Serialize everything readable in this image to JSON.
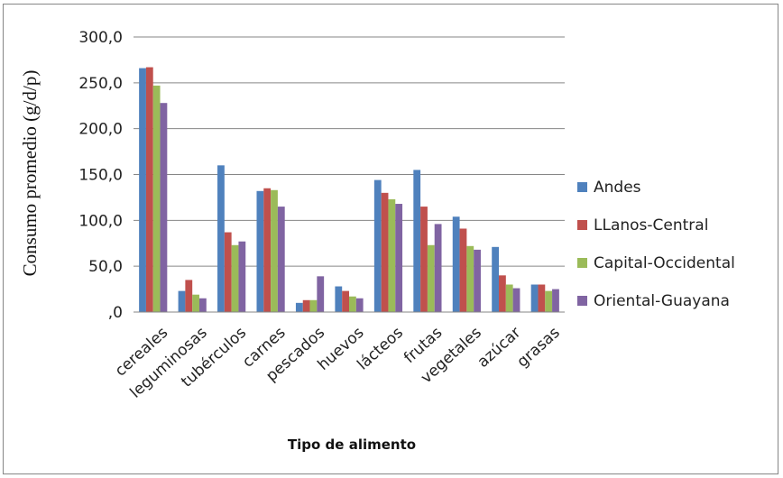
{
  "chart_data": {
    "type": "bar",
    "title": "",
    "xlabel": "Tipo de alimento",
    "ylabel": "Consumo promedio (g/d/p)",
    "ylim": [
      0,
      300
    ],
    "yticks": [
      ",0",
      "50,0",
      "100,0",
      "150,0",
      "200,0",
      "250,0",
      "300,0"
    ],
    "ytick_values": [
      0,
      50,
      100,
      150,
      200,
      250,
      300
    ],
    "grid": true,
    "legend_position": "right",
    "categories": [
      "cereales",
      "leguminosas",
      "tubérculos",
      "carnes",
      "pescados",
      "huevos",
      "lácteos",
      "frutas",
      "vegetales",
      "azúcar",
      "grasas"
    ],
    "series": [
      {
        "name": "Andes",
        "color": "#4F81BD",
        "values": [
          266,
          23,
          160,
          132,
          10,
          28,
          144,
          155,
          104,
          71,
          30
        ]
      },
      {
        "name": "LLanos-Central",
        "color": "#C0504D",
        "values": [
          267,
          35,
          87,
          135,
          13,
          23,
          130,
          115,
          91,
          40,
          30
        ]
      },
      {
        "name": "Capital-Occidental",
        "color": "#9BBB59",
        "values": [
          247,
          19,
          73,
          133,
          13,
          17,
          123,
          73,
          72,
          30,
          23
        ]
      },
      {
        "name": "Oriental-Guayana",
        "color": "#8064A2",
        "values": [
          228,
          15,
          77,
          115,
          39,
          15,
          118,
          96,
          68,
          26,
          25
        ]
      }
    ]
  }
}
